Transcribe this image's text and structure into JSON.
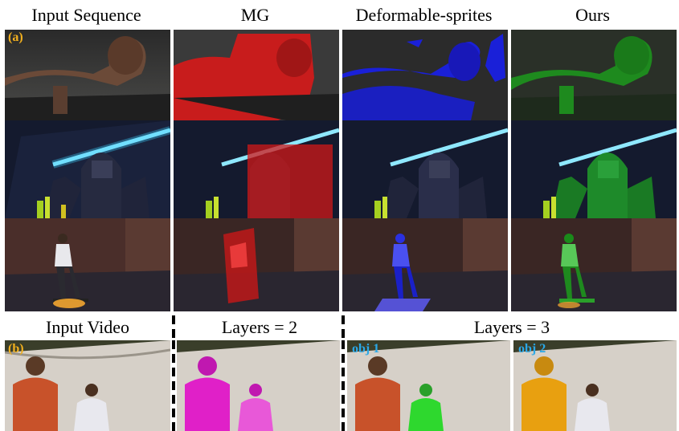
{
  "header": {
    "col1": "Input Sequence",
    "col2": "MG",
    "col3": "Deformable-sprites",
    "col4": "Ours"
  },
  "panel_a": {
    "tag": "(a)"
  },
  "panel_b": {
    "tag": "(b)",
    "col1": "Input Video",
    "col2": "Layers = 2",
    "col3": "Layers = 3",
    "obj1": "obj 1",
    "obj2": "obj 2"
  },
  "colors": {
    "mg_mask": "#d01818",
    "sprites_mask": "#1a20d8",
    "ours_mask": "#1e9a1e",
    "layers2_mask": "#e020c8",
    "obj1_mask": "#2ed82e",
    "obj2_mask": "#e8a010"
  }
}
